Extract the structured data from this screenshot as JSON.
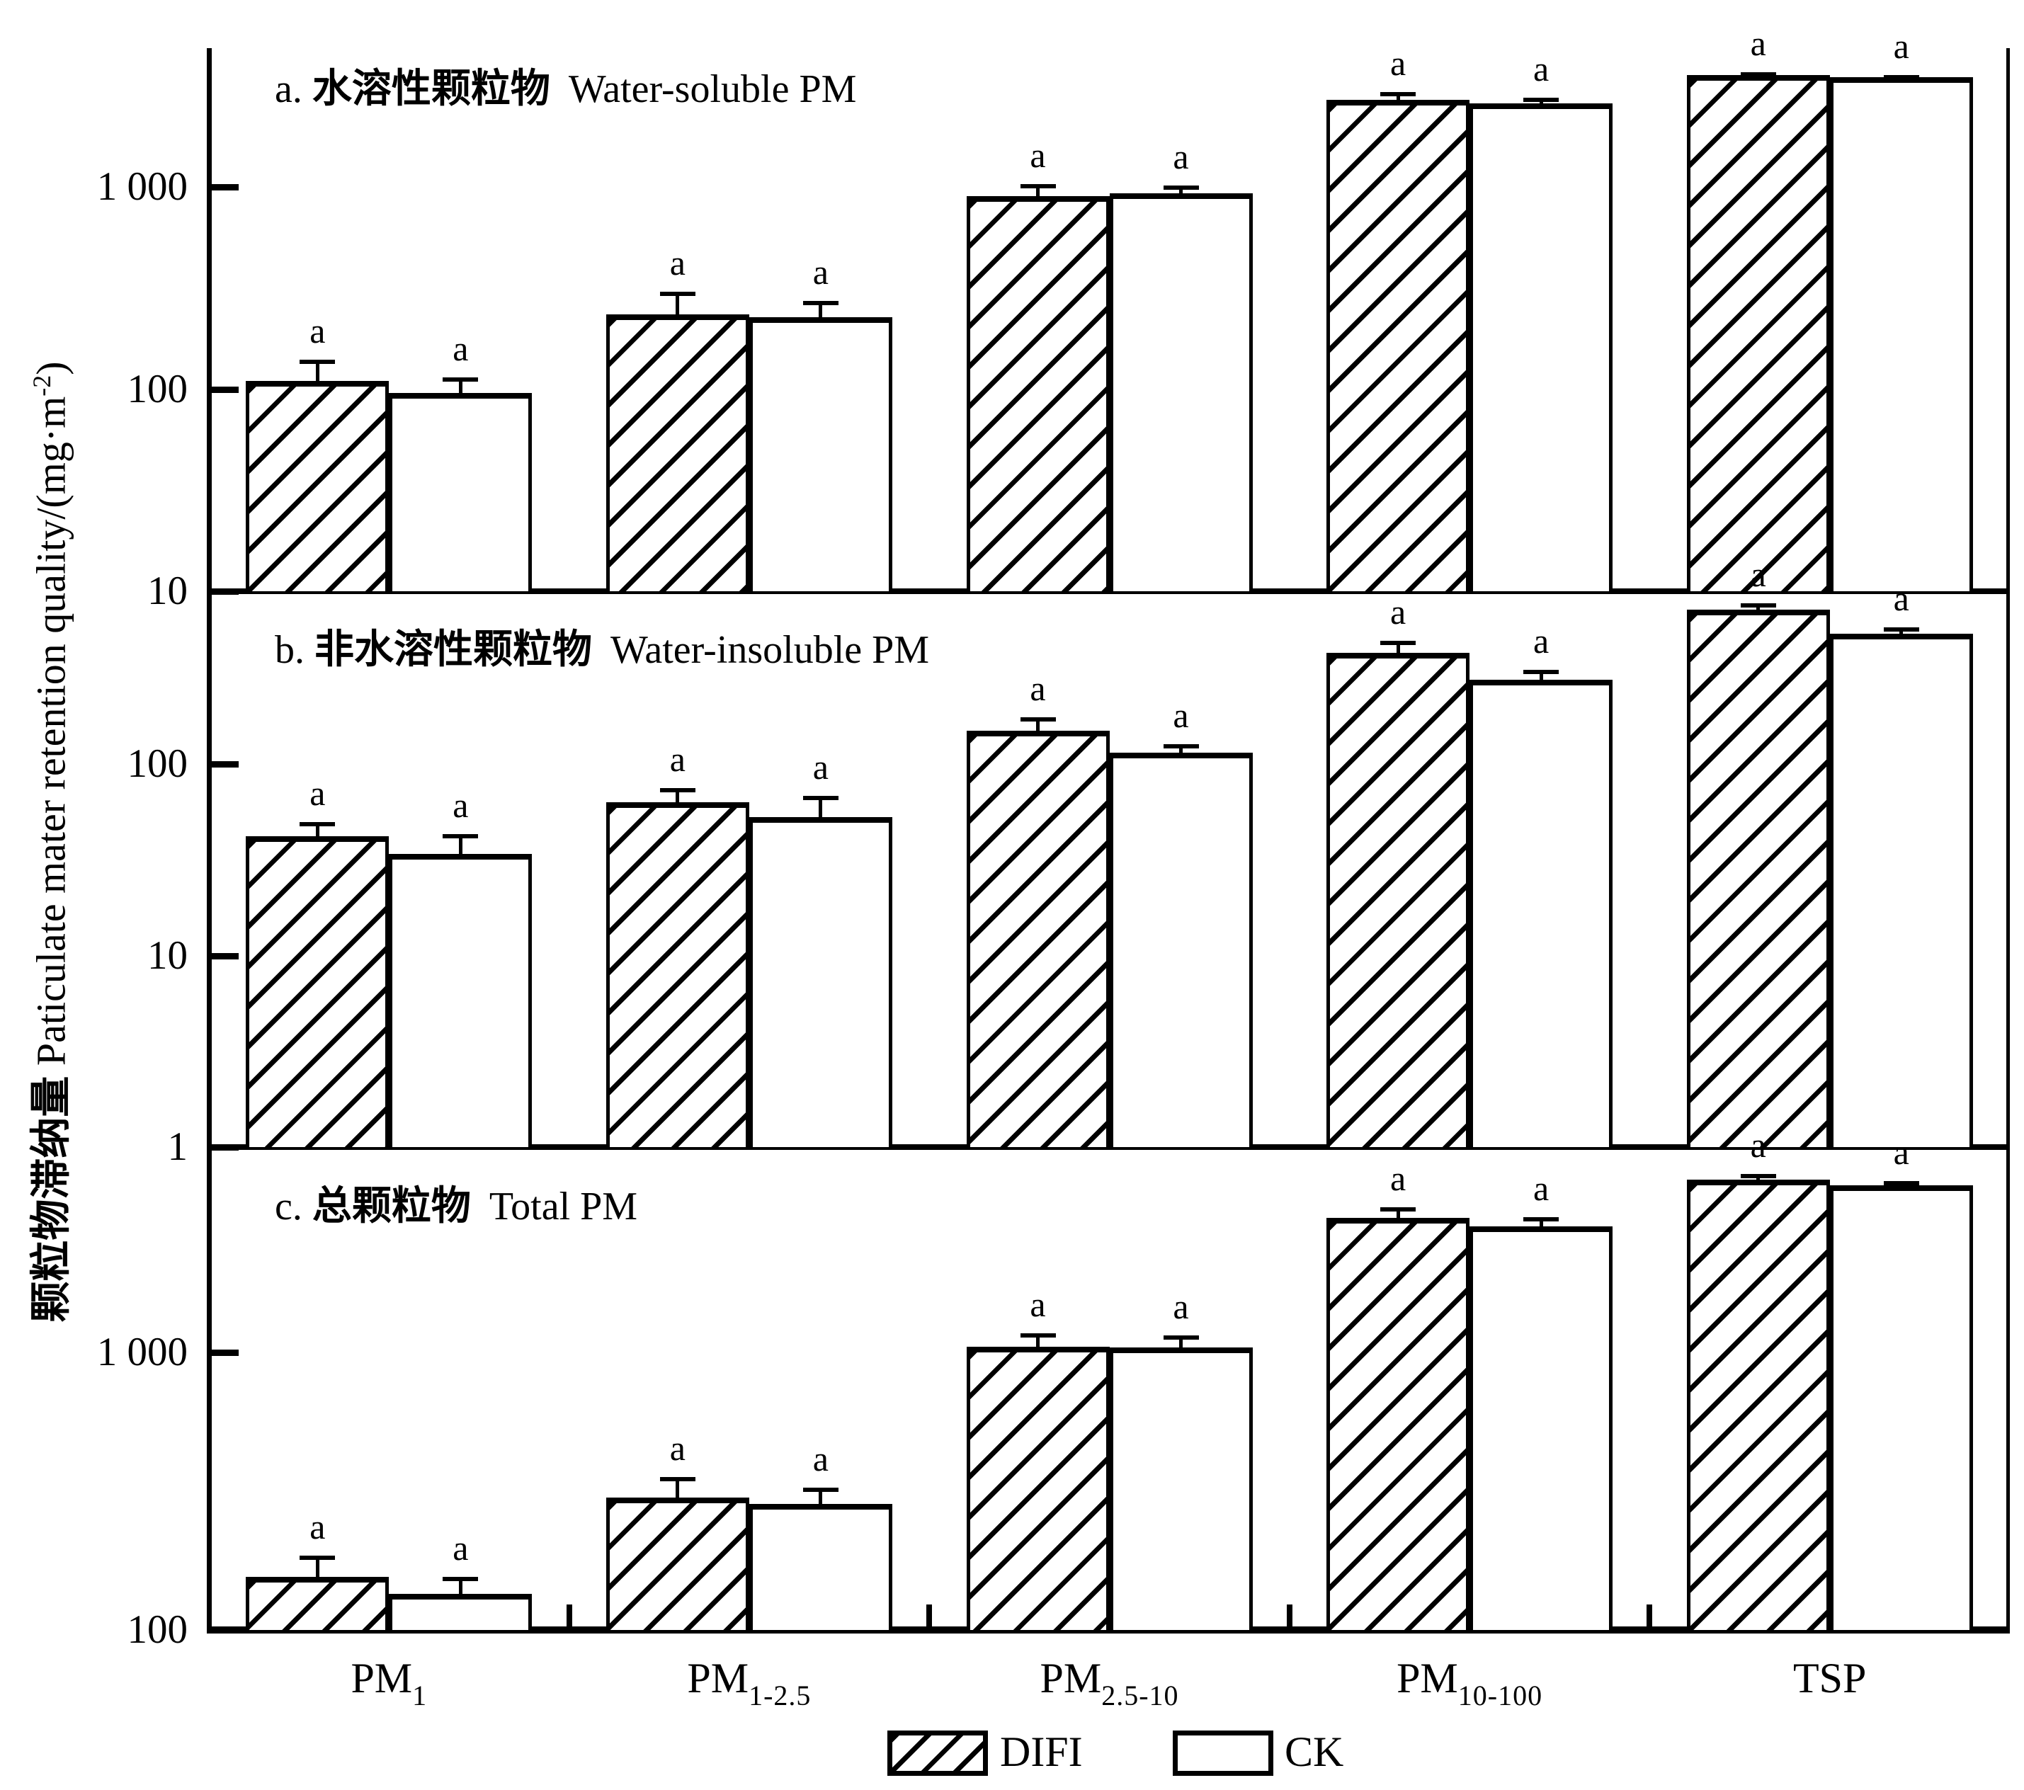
{
  "y_axis_label": {
    "cn": "颗粒物滞纳量",
    "en": " Paticulate mater retention quality/(mg·m",
    "sup": "-2",
    "close": ")"
  },
  "legend": {
    "difi": "DIFI",
    "ck": "CK"
  },
  "sig_letter": "a",
  "chart_data": {
    "type": "bar",
    "yscale": "log",
    "grid": false,
    "legend_position": "bottom-center",
    "ylabel": "颗粒物滞纳量 Paticulate mater retention quality/(mg·m-2)",
    "categories": [
      {
        "main": "PM",
        "sub": "1"
      },
      {
        "main": "PM",
        "sub": "1-2.5"
      },
      {
        "main": "PM",
        "sub": "2.5-10"
      },
      {
        "main": "PM",
        "sub": "10-100"
      },
      {
        "main": "TSP",
        "sub": ""
      }
    ],
    "panels": [
      {
        "id": "a",
        "title_prefix": "a.",
        "title_cn": "水溶性颗粒物",
        "title_en": "Water-soluble PM",
        "ylim": [
          10,
          5000
        ],
        "yticks": [
          {
            "value": 1000,
            "label": "1 000"
          },
          {
            "value": 100,
            "label": "100"
          },
          {
            "value": 10,
            "label": "10"
          }
        ],
        "series": [
          {
            "name": "DIFI",
            "hatch": true,
            "values": [
              110,
              235,
              900,
              2700,
              3600
            ],
            "errors": [
              30,
              70,
              140,
              250,
              120
            ],
            "sig": [
              "a",
              "a",
              "a",
              "a",
              "a"
            ]
          },
          {
            "name": "CK",
            "hatch": false,
            "values": [
              96,
              228,
              930,
              2600,
              3500
            ],
            "errors": [
              18,
              45,
              90,
              180,
              90
            ],
            "sig": [
              "a",
              "a",
              "a",
              "a",
              "a"
            ]
          }
        ]
      },
      {
        "id": "b",
        "title_prefix": "b.",
        "title_cn": "非水溶性颗粒物",
        "title_en": "Water-insoluble PM",
        "ylim": [
          1,
          800
        ],
        "yticks": [
          {
            "value": 100,
            "label": "100"
          },
          {
            "value": 10,
            "label": "10"
          },
          {
            "value": 1,
            "label": "1"
          }
        ],
        "series": [
          {
            "name": "DIFI",
            "hatch": true,
            "values": [
              42,
              63,
              150,
              380,
              640
            ],
            "errors": [
              8,
              12,
              25,
              60,
              55
            ],
            "sig": [
              "a",
              "a",
              "a",
              "a",
              "a"
            ]
          },
          {
            "name": "CK",
            "hatch": false,
            "values": [
              34,
              53,
              115,
              275,
              480
            ],
            "errors": [
              9,
              15,
              12,
              35,
              40
            ],
            "sig": [
              "a",
              "a",
              "a",
              "a",
              "a"
            ]
          }
        ]
      },
      {
        "id": "c",
        "title_prefix": "c.",
        "title_cn": "总颗粒物",
        "title_en": "Total PM",
        "ylim": [
          100,
          5500
        ],
        "yticks": [
          {
            "value": 1000,
            "label": "1 000"
          },
          {
            "value": 100,
            "label": "100"
          }
        ],
        "series": [
          {
            "name": "DIFI",
            "hatch": true,
            "values": [
              155,
              300,
              1050,
              3050,
              4200
            ],
            "errors": [
              30,
              55,
              120,
              280,
              200
            ],
            "sig": [
              "a",
              "a",
              "a",
              "a",
              "a"
            ]
          },
          {
            "name": "CK",
            "hatch": false,
            "values": [
              135,
              285,
              1040,
              2850,
              4000
            ],
            "errors": [
              20,
              40,
              110,
              220,
              160
            ],
            "sig": [
              "a",
              "a",
              "a",
              "a",
              "a"
            ]
          }
        ]
      }
    ]
  }
}
